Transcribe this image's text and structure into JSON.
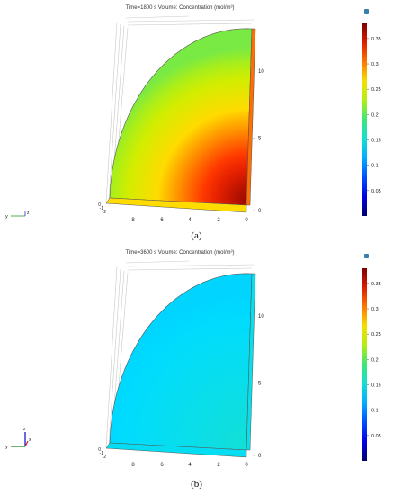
{
  "chart_data": [
    {
      "type": "heatmap",
      "panel_label": "(a)",
      "title": "Time=1800 s   Volume: Concentration (mol/m³)",
      "time_s": 1800,
      "field": "Concentration",
      "unit": "mol/m³",
      "colorbar": {
        "ticks": [
          0.35,
          0.3,
          0.25,
          0.2,
          0.15,
          0.1,
          0.05
        ],
        "range": [
          0,
          0.38
        ]
      },
      "axes": {
        "vertical_ticks": [
          "10",
          "5",
          "0"
        ],
        "horizontal_ticks": [
          "8",
          "6",
          "4",
          "2",
          "0"
        ],
        "depth_ticks": [
          "0",
          "-1",
          "-2"
        ],
        "triad": [
          "y",
          "z"
        ]
      },
      "concentration": {
        "curved_edge": 0.21,
        "inner_corner": 0.37
      }
    },
    {
      "type": "heatmap",
      "panel_label": "(b)",
      "title": "Time=3600 s   Volume: Concentration (mol/m³)",
      "time_s": 3600,
      "field": "Concentration",
      "unit": "mol/m³",
      "colorbar": {
        "ticks": [
          0.35,
          0.3,
          0.25,
          0.2,
          0.15,
          0.1,
          0.05
        ],
        "range": [
          0,
          0.38
        ]
      },
      "axes": {
        "vertical_ticks": [
          "10",
          "5",
          "0"
        ],
        "horizontal_ticks": [
          "8",
          "6",
          "4",
          "2",
          "0"
        ],
        "depth_ticks": [
          "0",
          "-1",
          "-2"
        ],
        "triad": [
          "y",
          "z",
          "x"
        ]
      },
      "concentration": {
        "curved_edge": 0.13,
        "inner_corner": 0.15
      }
    }
  ]
}
